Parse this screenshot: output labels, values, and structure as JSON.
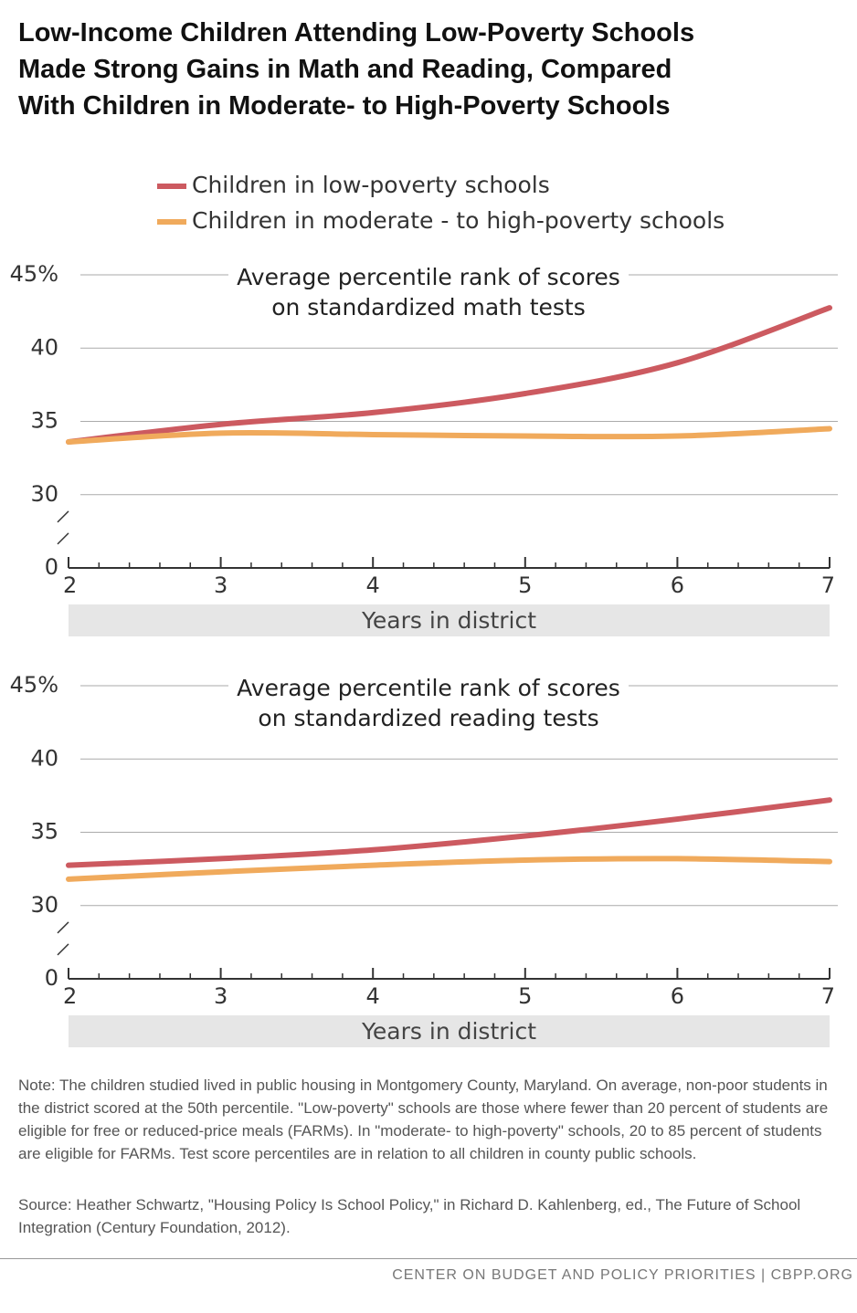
{
  "title": [
    "Low-Income Children Attending Low-Poverty Schools",
    "Made Strong Gains in Math and Reading, Compared",
    "With Children in Moderate- to High-Poverty Schools"
  ],
  "chart_data": [
    {
      "type": "line",
      "title": [
        "Average percentile rank of scores",
        "on standardized math tests"
      ],
      "x": [
        2,
        3,
        4,
        5,
        6,
        7
      ],
      "xlim": [
        2,
        7
      ],
      "xticks": [
        2,
        3,
        4,
        5,
        6,
        7
      ],
      "xlabel": "Years in district",
      "ylim": [
        0,
        45
      ],
      "yticks": [
        0,
        30,
        35,
        40,
        {
          "value": 45,
          "label": "45%"
        }
      ],
      "axis_break": true,
      "grid": true,
      "series": [
        {
          "name": "Children in low-poverty schools",
          "color": "#cc5a60",
          "values": [
            33.6,
            34.8,
            35.6,
            36.9,
            39.0,
            42.75
          ]
        },
        {
          "name": "Children in moderate - to high-poverty schools",
          "color": "#f0aa5c",
          "values": [
            33.6,
            34.2,
            34.1,
            34.0,
            34.0,
            34.5
          ]
        }
      ]
    },
    {
      "type": "line",
      "title": [
        "Average percentile rank of scores",
        "on standardized reading tests"
      ],
      "x": [
        2,
        3,
        4,
        5,
        6,
        7
      ],
      "xlim": [
        2,
        7
      ],
      "xticks": [
        2,
        3,
        4,
        5,
        6,
        7
      ],
      "xlabel": "Years in district",
      "ylim": [
        0,
        45
      ],
      "yticks": [
        0,
        30,
        35,
        40,
        {
          "value": 45,
          "label": "45%"
        }
      ],
      "axis_break": true,
      "grid": true,
      "series": [
        {
          "color": "#cc5a60",
          "values": [
            32.75,
            33.2,
            33.8,
            34.75,
            35.9,
            37.2
          ]
        },
        {
          "color": "#f0aa5c",
          "values": [
            31.8,
            32.3,
            32.75,
            33.1,
            33.2,
            33.0
          ]
        }
      ]
    }
  ],
  "note": "Note: The children studied lived in public housing in Montgomery County, Maryland.  On average, non-poor students in the district scored at the 50th percentile.  \"Low-poverty\" schools are those where fewer than 20 percent of students are eligible for free or reduced-price meals (FARMs).  In \"moderate- to high-poverty\" schools, 20 to 85 percent of students are eligible for FARMs. Test score percentiles are in relation to all children in county public schools.",
  "source": "Source: Heather Schwartz, \"Housing Policy Is School Policy,\" in Richard D. Kahlenberg, ed., The Future of School Integration (Century Foundation, 2012).",
  "footer": "CENTER ON BUDGET AND POLICY PRIORITIES | CBPP.ORG"
}
